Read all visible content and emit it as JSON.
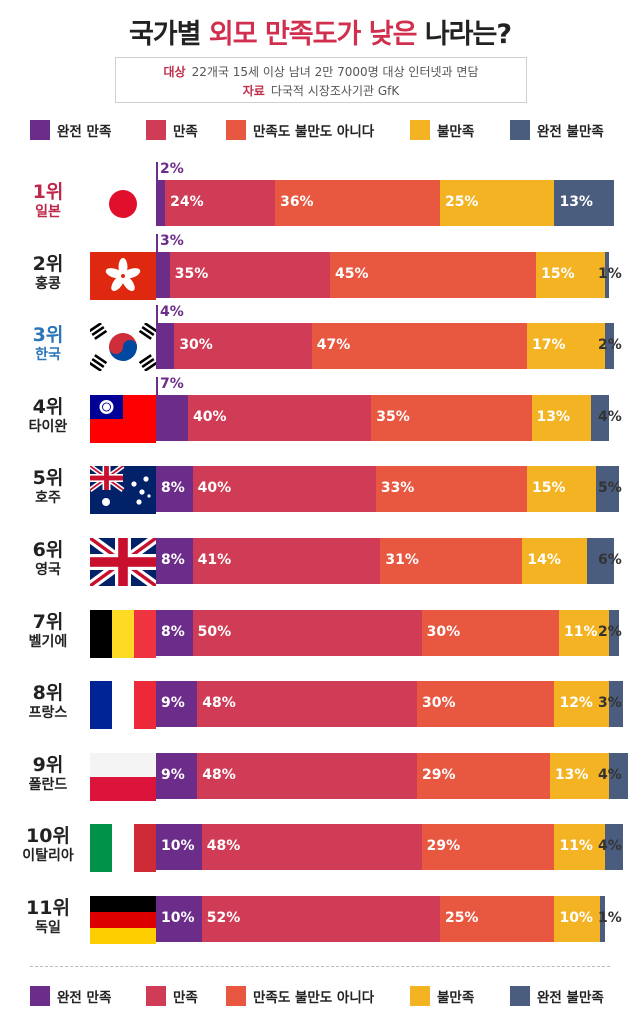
{
  "title": {
    "prefix": "국가별 ",
    "highlight": "외모 만족도가 낮은",
    "suffix": " 나라는?"
  },
  "info": {
    "target_key": "대상",
    "target_text": "22개국 15세 이상 남녀 2만 7000명 대상 인터넷과 면담",
    "source_key": "자료",
    "source_text": "다국적 시장조사기관 GfK"
  },
  "colors": {
    "완전 만족": "#6b2c8a",
    "만족": "#d03b55",
    "만족도 불만도 아니다": "#e8573f",
    "불만족": "#f3b323",
    "완전 불만족": "#4b5d7e",
    "rank_highlight_red": "#c0284a",
    "rank_highlight_blue": "#2a76b8"
  },
  "chart_data": {
    "type": "bar",
    "stacked": true,
    "orientation": "horizontal",
    "series_names": [
      "완전 만족",
      "만족",
      "만족도 불만도 아니다",
      "불만족",
      "완전 불만족"
    ],
    "categories": [
      {
        "rank": "1위",
        "country": "일본",
        "flag": "japan-flag",
        "rank_color": "red",
        "values": [
          2,
          24,
          36,
          25,
          13
        ]
      },
      {
        "rank": "2위",
        "country": "홍콩",
        "flag": "hongkong-flag",
        "rank_color": "default",
        "values": [
          3,
          35,
          45,
          15,
          1
        ]
      },
      {
        "rank": "3위",
        "country": "한국",
        "flag": "korea-flag",
        "rank_color": "blue",
        "values": [
          4,
          30,
          47,
          17,
          2
        ]
      },
      {
        "rank": "4위",
        "country": "타이완",
        "flag": "taiwan-flag",
        "rank_color": "default",
        "values": [
          7,
          40,
          35,
          13,
          4
        ]
      },
      {
        "rank": "5위",
        "country": "호주",
        "flag": "australia-flag",
        "rank_color": "default",
        "values": [
          8,
          40,
          33,
          15,
          5
        ]
      },
      {
        "rank": "6위",
        "country": "영국",
        "flag": "uk-flag",
        "rank_color": "default",
        "values": [
          8,
          41,
          31,
          14,
          6
        ]
      },
      {
        "rank": "7위",
        "country": "벨기에",
        "flag": "belgium-flag",
        "rank_color": "default",
        "values": [
          8,
          50,
          30,
          11,
          2
        ]
      },
      {
        "rank": "8위",
        "country": "프랑스",
        "flag": "france-flag",
        "rank_color": "default",
        "values": [
          9,
          48,
          30,
          12,
          3
        ]
      },
      {
        "rank": "9위",
        "country": "폴란드",
        "flag": "poland-flag",
        "rank_color": "default",
        "values": [
          9,
          48,
          29,
          13,
          4
        ]
      },
      {
        "rank": "10위",
        "country": "이탈리아",
        "flag": "italy-flag",
        "rank_color": "default",
        "values": [
          10,
          48,
          29,
          11,
          4
        ]
      },
      {
        "rank": "11위",
        "country": "독일",
        "flag": "germany-flag",
        "rank_color": "default",
        "values": [
          10,
          52,
          25,
          10,
          1
        ]
      }
    ],
    "unit": "%",
    "xlim": [
      0,
      100
    ],
    "legend_position": "top and bottom",
    "grid": false
  }
}
